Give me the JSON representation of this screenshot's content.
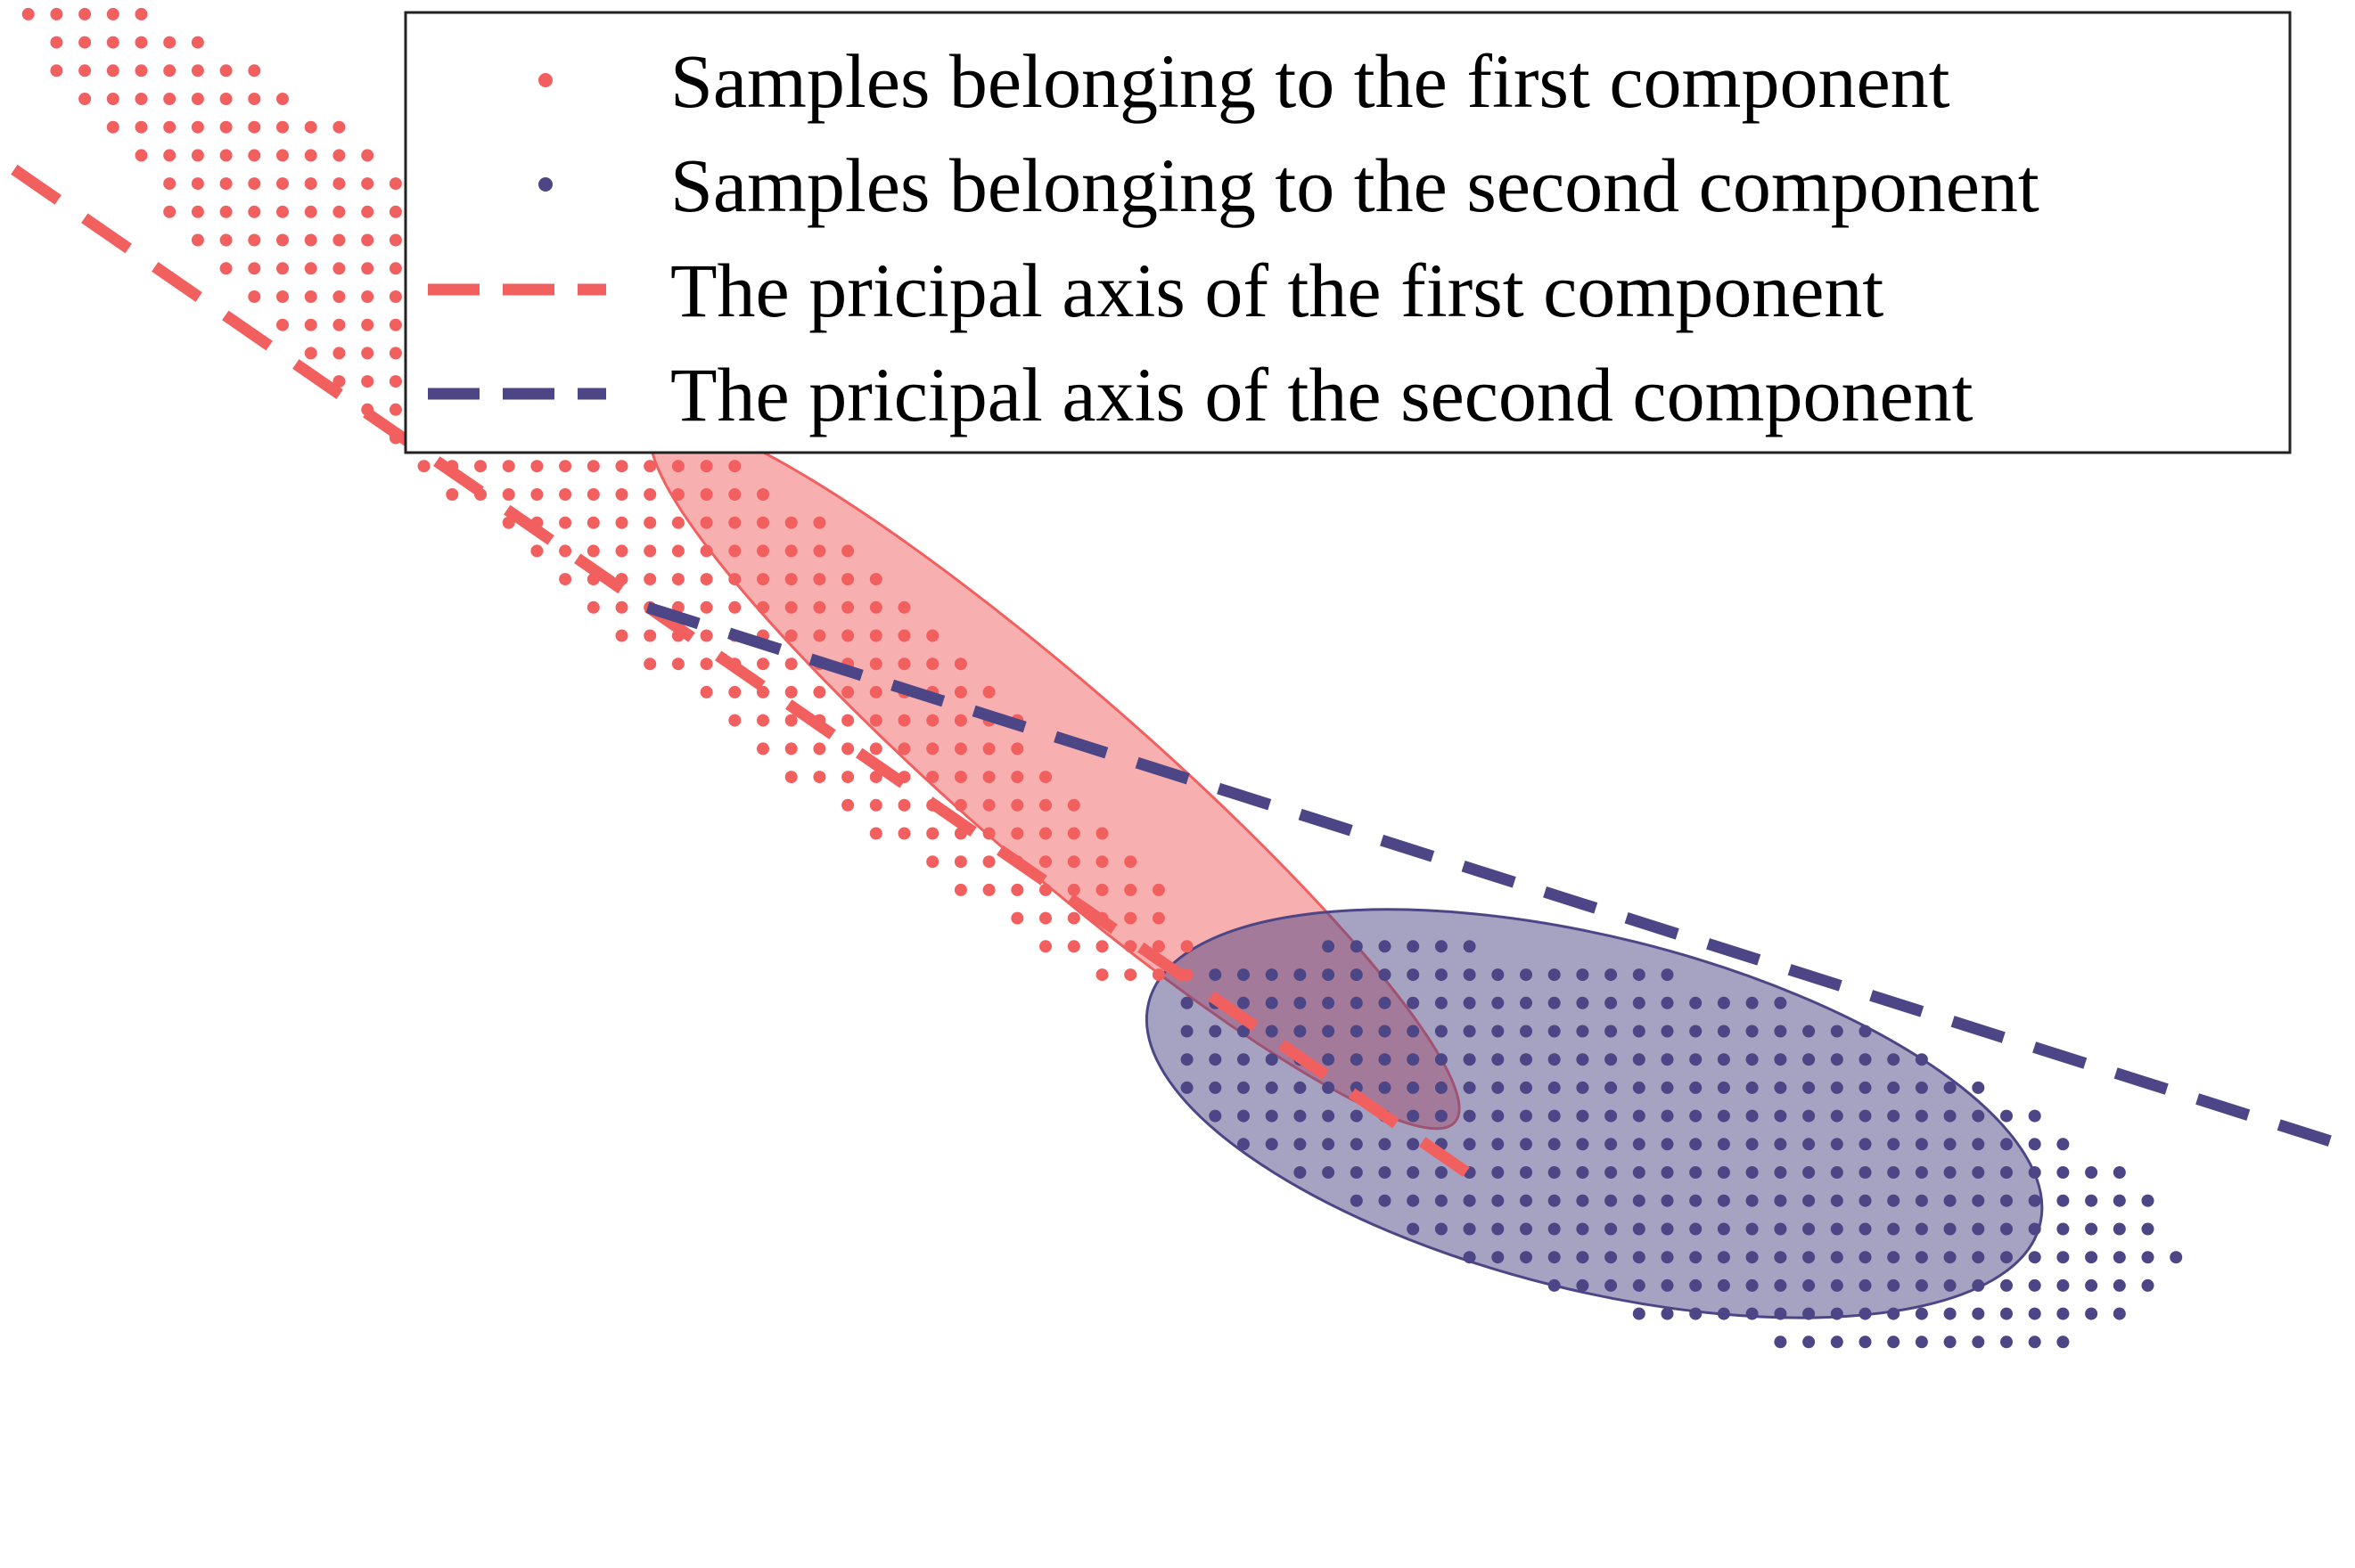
{
  "chart_data": {
    "type": "scatter",
    "title": "",
    "xlabel": "",
    "ylabel": "",
    "axes_visible": false,
    "grid": false,
    "legend_position": "top-right",
    "xlim": [
      0,
      100
    ],
    "ylim": [
      0,
      66.6
    ],
    "series": [
      {
        "name": "Samples belonging to the first component",
        "kind": "points",
        "color": "#f25f5f",
        "shape": "grid-ellipse",
        "center": [
          26,
          45.9
        ],
        "semi_major": 33,
        "semi_minor": 4.8,
        "angle_deg": -41,
        "grid_step": 1.2
      },
      {
        "name": "Samples belonging to the second component",
        "kind": "points",
        "color": "#4d4686",
        "shape": "grid-ellipse",
        "center": [
          71,
          17.8
        ],
        "semi_major": 22,
        "semi_minor": 7.2,
        "angle_deg": -14,
        "grid_step": 1.2
      },
      {
        "name": "The pricipal axis of the first component",
        "kind": "dashed-line",
        "color": "#f25f5f",
        "from": [
          0.6,
          59.4
        ],
        "to": [
          63.3,
          16.1
        ]
      },
      {
        "name": "The pricipal axis of the second component",
        "kind": "dashed-line",
        "color": "#4d4686",
        "from": [
          27.5,
          40.8
        ],
        "to": [
          100,
          17.8
        ]
      }
    ],
    "covariance_ellipses": [
      {
        "component": "first",
        "color": "#f25f5f",
        "center": [
          44.8,
          33.7
        ],
        "semi_major": 22.5,
        "semi_minor": 3.8,
        "angle_deg": -41
      },
      {
        "component": "second",
        "color": "#4d4686",
        "center": [
          67.7,
          19.3
        ],
        "semi_major": 19.5,
        "semi_minor": 7.5,
        "angle_deg": -14
      }
    ]
  }
}
